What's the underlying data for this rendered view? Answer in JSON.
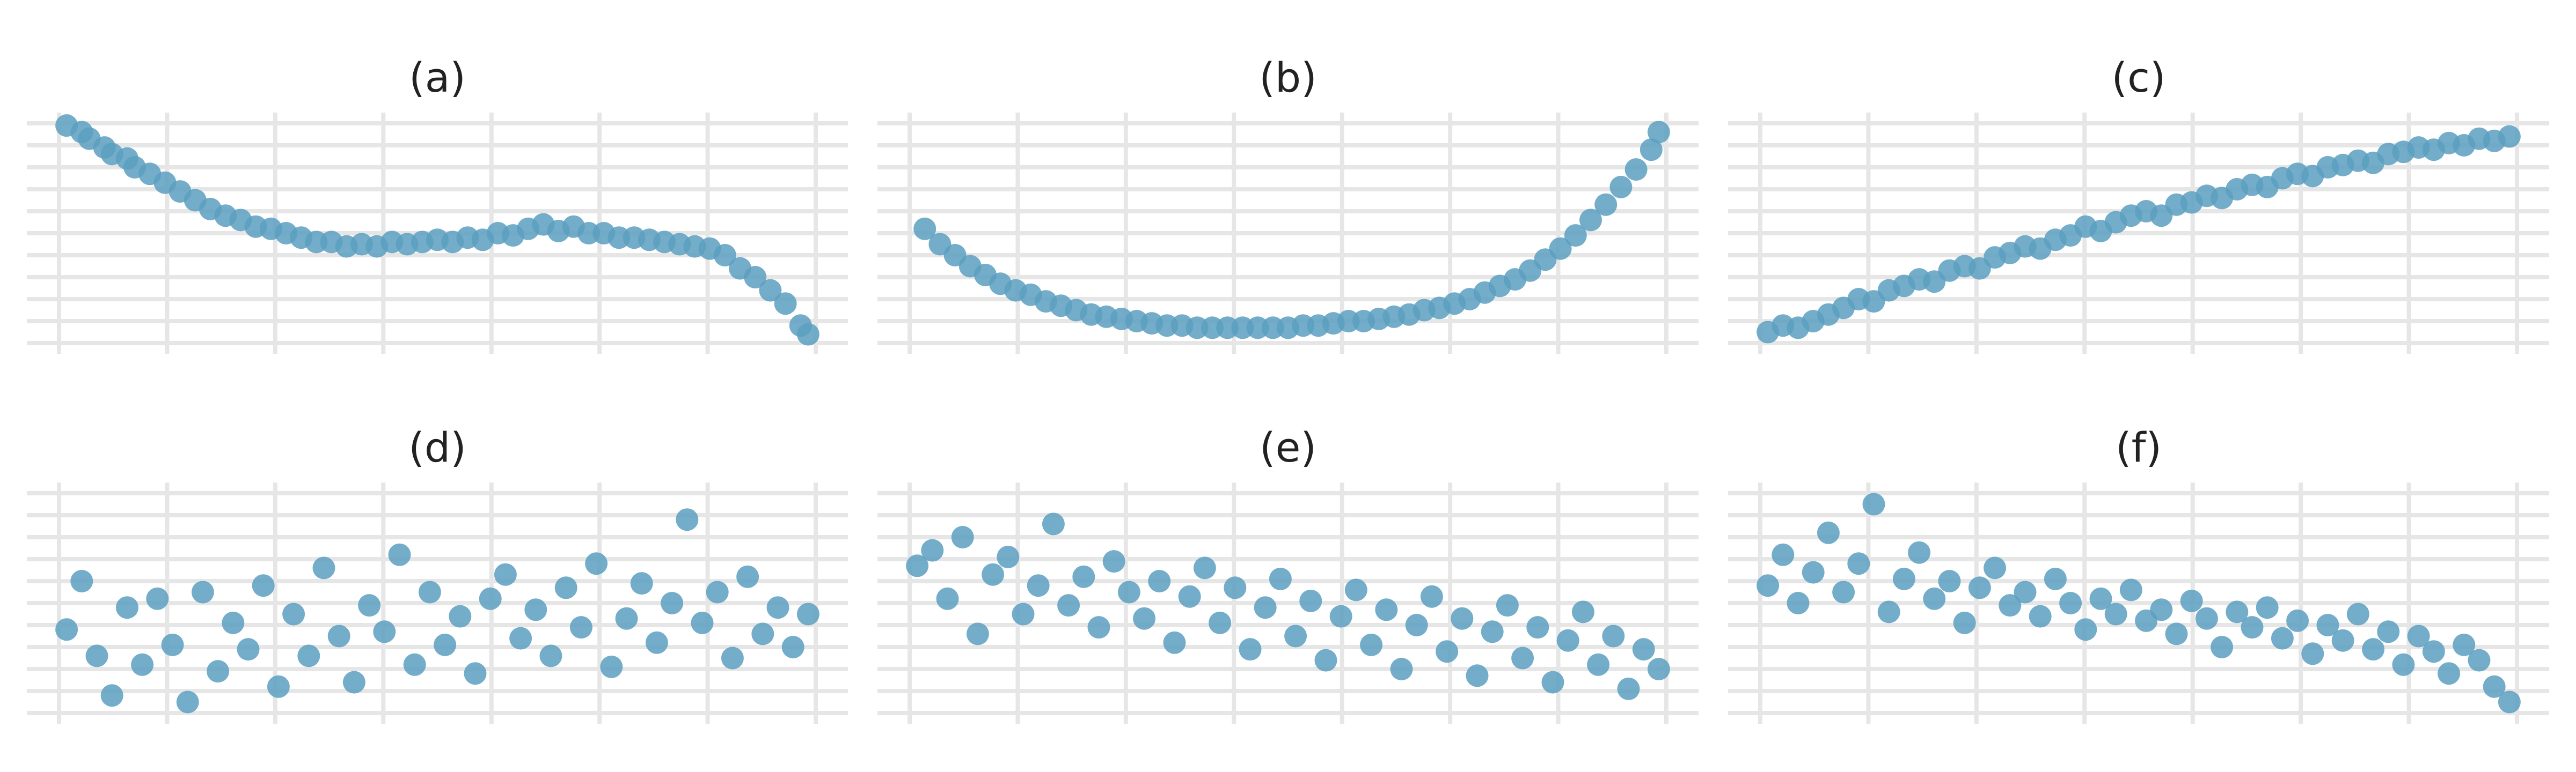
{
  "colors": {
    "point": "#5b9fc0",
    "grid": "#e6e6e6",
    "background": "#ffffff"
  },
  "chart_data": [
    {
      "type": "scatter",
      "title": "(a)",
      "xlabel": "",
      "ylabel": "",
      "grid": true,
      "xlim": [
        0,
        1
      ],
      "ylim": [
        0,
        1
      ],
      "points": [
        [
          0.01,
          0.99
        ],
        [
          0.03,
          0.96
        ],
        [
          0.04,
          0.93
        ],
        [
          0.06,
          0.89
        ],
        [
          0.07,
          0.86
        ],
        [
          0.09,
          0.84
        ],
        [
          0.1,
          0.8
        ],
        [
          0.12,
          0.77
        ],
        [
          0.14,
          0.73
        ],
        [
          0.16,
          0.69
        ],
        [
          0.18,
          0.65
        ],
        [
          0.2,
          0.61
        ],
        [
          0.22,
          0.58
        ],
        [
          0.24,
          0.56
        ],
        [
          0.26,
          0.53
        ],
        [
          0.28,
          0.52
        ],
        [
          0.3,
          0.5
        ],
        [
          0.32,
          0.48
        ],
        [
          0.34,
          0.46
        ],
        [
          0.36,
          0.46
        ],
        [
          0.38,
          0.44
        ],
        [
          0.4,
          0.45
        ],
        [
          0.42,
          0.44
        ],
        [
          0.44,
          0.46
        ],
        [
          0.46,
          0.45
        ],
        [
          0.48,
          0.46
        ],
        [
          0.5,
          0.47
        ],
        [
          0.52,
          0.46
        ],
        [
          0.54,
          0.48
        ],
        [
          0.56,
          0.47
        ],
        [
          0.58,
          0.5
        ],
        [
          0.6,
          0.49
        ],
        [
          0.62,
          0.52
        ],
        [
          0.64,
          0.54
        ],
        [
          0.66,
          0.51
        ],
        [
          0.68,
          0.53
        ],
        [
          0.7,
          0.5
        ],
        [
          0.72,
          0.5
        ],
        [
          0.74,
          0.48
        ],
        [
          0.76,
          0.48
        ],
        [
          0.78,
          0.47
        ],
        [
          0.8,
          0.46
        ],
        [
          0.82,
          0.45
        ],
        [
          0.84,
          0.44
        ],
        [
          0.86,
          0.43
        ],
        [
          0.88,
          0.4
        ],
        [
          0.9,
          0.34
        ],
        [
          0.92,
          0.3
        ],
        [
          0.94,
          0.24
        ],
        [
          0.96,
          0.18
        ],
        [
          0.98,
          0.08
        ],
        [
          0.99,
          0.04
        ]
      ]
    },
    {
      "type": "scatter",
      "title": "(b)",
      "xlabel": "",
      "ylabel": "",
      "grid": true,
      "xlim": [
        0,
        1
      ],
      "ylim": [
        0,
        1
      ],
      "points": [
        [
          0.02,
          0.52
        ],
        [
          0.04,
          0.45
        ],
        [
          0.06,
          0.4
        ],
        [
          0.08,
          0.35
        ],
        [
          0.1,
          0.31
        ],
        [
          0.12,
          0.27
        ],
        [
          0.14,
          0.24
        ],
        [
          0.16,
          0.22
        ],
        [
          0.18,
          0.19
        ],
        [
          0.2,
          0.17
        ],
        [
          0.22,
          0.15
        ],
        [
          0.24,
          0.13
        ],
        [
          0.26,
          0.12
        ],
        [
          0.28,
          0.11
        ],
        [
          0.3,
          0.1
        ],
        [
          0.32,
          0.09
        ],
        [
          0.34,
          0.08
        ],
        [
          0.36,
          0.08
        ],
        [
          0.38,
          0.07
        ],
        [
          0.4,
          0.07
        ],
        [
          0.42,
          0.07
        ],
        [
          0.44,
          0.07
        ],
        [
          0.46,
          0.07
        ],
        [
          0.48,
          0.07
        ],
        [
          0.5,
          0.07
        ],
        [
          0.52,
          0.08
        ],
        [
          0.54,
          0.08
        ],
        [
          0.56,
          0.09
        ],
        [
          0.58,
          0.1
        ],
        [
          0.6,
          0.1
        ],
        [
          0.62,
          0.11
        ],
        [
          0.64,
          0.12
        ],
        [
          0.66,
          0.13
        ],
        [
          0.68,
          0.15
        ],
        [
          0.7,
          0.16
        ],
        [
          0.72,
          0.18
        ],
        [
          0.74,
          0.2
        ],
        [
          0.76,
          0.23
        ],
        [
          0.78,
          0.26
        ],
        [
          0.8,
          0.29
        ],
        [
          0.82,
          0.33
        ],
        [
          0.84,
          0.38
        ],
        [
          0.86,
          0.43
        ],
        [
          0.88,
          0.49
        ],
        [
          0.9,
          0.56
        ],
        [
          0.92,
          0.63
        ],
        [
          0.94,
          0.71
        ],
        [
          0.96,
          0.79
        ],
        [
          0.98,
          0.88
        ],
        [
          0.99,
          0.96
        ]
      ]
    },
    {
      "type": "scatter",
      "title": "(c)",
      "xlabel": "",
      "ylabel": "",
      "grid": true,
      "xlim": [
        0,
        1
      ],
      "ylim": [
        0,
        1
      ],
      "points": [
        [
          0.01,
          0.05
        ],
        [
          0.03,
          0.08
        ],
        [
          0.05,
          0.07
        ],
        [
          0.07,
          0.1
        ],
        [
          0.09,
          0.13
        ],
        [
          0.11,
          0.16
        ],
        [
          0.13,
          0.2
        ],
        [
          0.15,
          0.19
        ],
        [
          0.17,
          0.24
        ],
        [
          0.19,
          0.26
        ],
        [
          0.21,
          0.29
        ],
        [
          0.23,
          0.28
        ],
        [
          0.25,
          0.33
        ],
        [
          0.27,
          0.35
        ],
        [
          0.29,
          0.34
        ],
        [
          0.31,
          0.39
        ],
        [
          0.33,
          0.41
        ],
        [
          0.35,
          0.44
        ],
        [
          0.37,
          0.43
        ],
        [
          0.39,
          0.47
        ],
        [
          0.41,
          0.49
        ],
        [
          0.43,
          0.53
        ],
        [
          0.45,
          0.51
        ],
        [
          0.47,
          0.55
        ],
        [
          0.49,
          0.58
        ],
        [
          0.51,
          0.6
        ],
        [
          0.53,
          0.58
        ],
        [
          0.55,
          0.63
        ],
        [
          0.57,
          0.64
        ],
        [
          0.59,
          0.67
        ],
        [
          0.61,
          0.66
        ],
        [
          0.63,
          0.7
        ],
        [
          0.65,
          0.72
        ],
        [
          0.67,
          0.71
        ],
        [
          0.69,
          0.75
        ],
        [
          0.71,
          0.77
        ],
        [
          0.73,
          0.76
        ],
        [
          0.75,
          0.8
        ],
        [
          0.77,
          0.81
        ],
        [
          0.79,
          0.83
        ],
        [
          0.81,
          0.82
        ],
        [
          0.83,
          0.86
        ],
        [
          0.85,
          0.87
        ],
        [
          0.87,
          0.89
        ],
        [
          0.89,
          0.88
        ],
        [
          0.91,
          0.91
        ],
        [
          0.93,
          0.9
        ],
        [
          0.95,
          0.93
        ],
        [
          0.97,
          0.92
        ],
        [
          0.99,
          0.94
        ]
      ]
    },
    {
      "type": "scatter",
      "title": "(d)",
      "xlabel": "",
      "ylabel": "",
      "grid": true,
      "xlim": [
        0,
        1
      ],
      "ylim": [
        0,
        1
      ],
      "points": [
        [
          0.01,
          0.38
        ],
        [
          0.03,
          0.6
        ],
        [
          0.05,
          0.26
        ],
        [
          0.07,
          0.08
        ],
        [
          0.09,
          0.48
        ],
        [
          0.11,
          0.22
        ],
        [
          0.13,
          0.52
        ],
        [
          0.15,
          0.31
        ],
        [
          0.17,
          0.05
        ],
        [
          0.19,
          0.55
        ],
        [
          0.21,
          0.19
        ],
        [
          0.23,
          0.41
        ],
        [
          0.25,
          0.29
        ],
        [
          0.27,
          0.58
        ],
        [
          0.29,
          0.12
        ],
        [
          0.31,
          0.45
        ],
        [
          0.33,
          0.26
        ],
        [
          0.35,
          0.66
        ],
        [
          0.37,
          0.35
        ],
        [
          0.39,
          0.14
        ],
        [
          0.41,
          0.49
        ],
        [
          0.43,
          0.37
        ],
        [
          0.45,
          0.72
        ],
        [
          0.47,
          0.22
        ],
        [
          0.49,
          0.55
        ],
        [
          0.51,
          0.31
        ],
        [
          0.53,
          0.44
        ],
        [
          0.55,
          0.18
        ],
        [
          0.57,
          0.52
        ],
        [
          0.59,
          0.63
        ],
        [
          0.61,
          0.34
        ],
        [
          0.63,
          0.47
        ],
        [
          0.65,
          0.26
        ],
        [
          0.67,
          0.57
        ],
        [
          0.69,
          0.39
        ],
        [
          0.71,
          0.68
        ],
        [
          0.73,
          0.21
        ],
        [
          0.75,
          0.43
        ],
        [
          0.77,
          0.59
        ],
        [
          0.79,
          0.32
        ],
        [
          0.81,
          0.5
        ],
        [
          0.83,
          0.88
        ],
        [
          0.85,
          0.41
        ],
        [
          0.87,
          0.55
        ],
        [
          0.89,
          0.25
        ],
        [
          0.91,
          0.62
        ],
        [
          0.93,
          0.36
        ],
        [
          0.95,
          0.48
        ],
        [
          0.97,
          0.3
        ],
        [
          0.99,
          0.45
        ]
      ]
    },
    {
      "type": "scatter",
      "title": "(e)",
      "xlabel": "",
      "ylabel": "",
      "grid": true,
      "xlim": [
        0,
        1
      ],
      "ylim": [
        0,
        1
      ],
      "points": [
        [
          0.01,
          0.67
        ],
        [
          0.03,
          0.74
        ],
        [
          0.05,
          0.52
        ],
        [
          0.07,
          0.8
        ],
        [
          0.09,
          0.36
        ],
        [
          0.11,
          0.63
        ],
        [
          0.13,
          0.71
        ],
        [
          0.15,
          0.45
        ],
        [
          0.17,
          0.58
        ],
        [
          0.19,
          0.86
        ],
        [
          0.21,
          0.49
        ],
        [
          0.23,
          0.62
        ],
        [
          0.25,
          0.39
        ],
        [
          0.27,
          0.69
        ],
        [
          0.29,
          0.55
        ],
        [
          0.31,
          0.43
        ],
        [
          0.33,
          0.6
        ],
        [
          0.35,
          0.32
        ],
        [
          0.37,
          0.53
        ],
        [
          0.39,
          0.66
        ],
        [
          0.41,
          0.41
        ],
        [
          0.43,
          0.57
        ],
        [
          0.45,
          0.29
        ],
        [
          0.47,
          0.48
        ],
        [
          0.49,
          0.61
        ],
        [
          0.51,
          0.35
        ],
        [
          0.53,
          0.51
        ],
        [
          0.55,
          0.24
        ],
        [
          0.57,
          0.44
        ],
        [
          0.59,
          0.56
        ],
        [
          0.61,
          0.31
        ],
        [
          0.63,
          0.47
        ],
        [
          0.65,
          0.2
        ],
        [
          0.67,
          0.4
        ],
        [
          0.69,
          0.53
        ],
        [
          0.71,
          0.28
        ],
        [
          0.73,
          0.43
        ],
        [
          0.75,
          0.17
        ],
        [
          0.77,
          0.37
        ],
        [
          0.79,
          0.49
        ],
        [
          0.81,
          0.25
        ],
        [
          0.83,
          0.39
        ],
        [
          0.85,
          0.14
        ],
        [
          0.87,
          0.33
        ],
        [
          0.89,
          0.46
        ],
        [
          0.91,
          0.22
        ],
        [
          0.93,
          0.35
        ],
        [
          0.95,
          0.11
        ],
        [
          0.97,
          0.29
        ],
        [
          0.99,
          0.2
        ]
      ]
    },
    {
      "type": "scatter",
      "title": "(f)",
      "xlabel": "",
      "ylabel": "",
      "grid": true,
      "xlim": [
        0,
        1
      ],
      "ylim": [
        0,
        1
      ],
      "points": [
        [
          0.01,
          0.58
        ],
        [
          0.03,
          0.72
        ],
        [
          0.05,
          0.5
        ],
        [
          0.07,
          0.64
        ],
        [
          0.09,
          0.82
        ],
        [
          0.11,
          0.55
        ],
        [
          0.13,
          0.68
        ],
        [
          0.15,
          0.95
        ],
        [
          0.17,
          0.46
        ],
        [
          0.19,
          0.61
        ],
        [
          0.21,
          0.73
        ],
        [
          0.23,
          0.52
        ],
        [
          0.25,
          0.6
        ],
        [
          0.27,
          0.41
        ],
        [
          0.29,
          0.57
        ],
        [
          0.31,
          0.66
        ],
        [
          0.33,
          0.49
        ],
        [
          0.35,
          0.55
        ],
        [
          0.37,
          0.44
        ],
        [
          0.39,
          0.61
        ],
        [
          0.41,
          0.5
        ],
        [
          0.43,
          0.38
        ],
        [
          0.45,
          0.52
        ],
        [
          0.47,
          0.45
        ],
        [
          0.49,
          0.56
        ],
        [
          0.51,
          0.42
        ],
        [
          0.53,
          0.47
        ],
        [
          0.55,
          0.36
        ],
        [
          0.57,
          0.51
        ],
        [
          0.59,
          0.43
        ],
        [
          0.61,
          0.3
        ],
        [
          0.63,
          0.46
        ],
        [
          0.65,
          0.39
        ],
        [
          0.67,
          0.48
        ],
        [
          0.69,
          0.34
        ],
        [
          0.71,
          0.42
        ],
        [
          0.73,
          0.27
        ],
        [
          0.75,
          0.4
        ],
        [
          0.77,
          0.33
        ],
        [
          0.79,
          0.45
        ],
        [
          0.81,
          0.29
        ],
        [
          0.83,
          0.37
        ],
        [
          0.85,
          0.22
        ],
        [
          0.87,
          0.35
        ],
        [
          0.89,
          0.28
        ],
        [
          0.91,
          0.18
        ],
        [
          0.93,
          0.31
        ],
        [
          0.95,
          0.24
        ],
        [
          0.97,
          0.12
        ],
        [
          0.99,
          0.05
        ]
      ]
    }
  ]
}
